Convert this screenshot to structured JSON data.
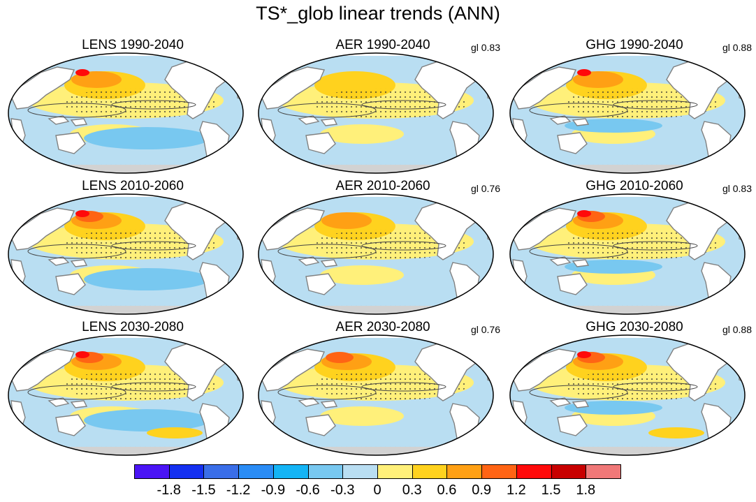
{
  "title": "TS*_glob linear trends (ANN)",
  "panels": [
    {
      "title": "LENS 1990-2040",
      "corr": ""
    },
    {
      "title": "AER 1990-2040",
      "corr": "gl 0.83"
    },
    {
      "title": "GHG 1990-2040",
      "corr": "gl 0.88"
    },
    {
      "title": "LENS 2010-2060",
      "corr": ""
    },
    {
      "title": "AER 2010-2060",
      "corr": "gl 0.76"
    },
    {
      "title": "GHG 2010-2060",
      "corr": "gl 0.83"
    },
    {
      "title": "LENS 2030-2080",
      "corr": ""
    },
    {
      "title": "AER 2030-2080",
      "corr": "gl 0.76"
    },
    {
      "title": "GHG 2030-2080",
      "corr": "gl 0.88"
    }
  ],
  "colorbar": {
    "labels": [
      "-1.8",
      "-1.5",
      "-1.2",
      "-0.9",
      "-0.6",
      "-0.3",
      "0",
      "0.3",
      "0.6",
      "0.9",
      "1.2",
      "1.5",
      "1.8"
    ],
    "colors": [
      "#4a14f5",
      "#1430f0",
      "#3a6ee8",
      "#2a8cf5",
      "#14b4f5",
      "#78c8f0",
      "#b9def2",
      "#fff07a",
      "#ffd21e",
      "#ffa014",
      "#ff6414",
      "#ff0a0a",
      "#c80000",
      "#f07878"
    ]
  },
  "map_colors": {
    "ocean_neutral": "#b9def2",
    "land": "#ffffff",
    "sea_ice": "#d2d2d2",
    "coast": "#808080"
  }
}
